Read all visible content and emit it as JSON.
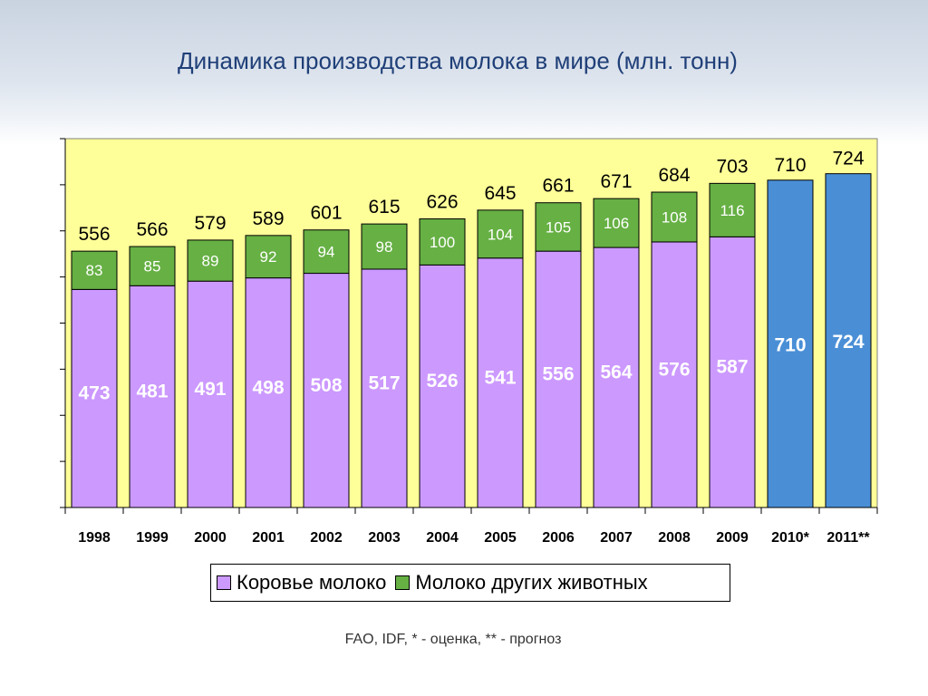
{
  "title": "Динамика производства молока в мире  (млн. тонн)",
  "source": "FAO, IDF, * - оценка, ** - прогноз",
  "legend": {
    "cow": "Коровье молоко",
    "other": "Молоко других животных"
  },
  "colors": {
    "cow": "#cc99ff",
    "other": "#66b044",
    "total": "#4a8fd6",
    "plot_bg": "#ffff99"
  },
  "chart_data": {
    "type": "bar",
    "stacked": true,
    "categories": [
      "1998",
      "1999",
      "2000",
      "2001",
      "2002",
      "2003",
      "2004",
      "2005",
      "2006",
      "2007",
      "2008",
      "2009",
      "2010*",
      "2011**"
    ],
    "series": [
      {
        "name": "Коровье молоко",
        "values": [
          473,
          481,
          491,
          498,
          508,
          517,
          526,
          541,
          556,
          564,
          576,
          587,
          null,
          null
        ]
      },
      {
        "name": "Молоко других животных",
        "values": [
          83,
          85,
          89,
          92,
          94,
          98,
          100,
          104,
          105,
          106,
          108,
          116,
          null,
          null
        ]
      },
      {
        "name": "",
        "values": [
          null,
          null,
          null,
          null,
          null,
          null,
          null,
          null,
          null,
          null,
          null,
          null,
          710,
          724
        ]
      }
    ],
    "totals": [
      556,
      566,
      579,
      589,
      601,
      615,
      626,
      645,
      661,
      671,
      684,
      703,
      710,
      724
    ],
    "ylim": [
      0,
      800
    ],
    "xlabel": "",
    "ylabel": "",
    "grid": false,
    "legend_position": "bottom"
  }
}
